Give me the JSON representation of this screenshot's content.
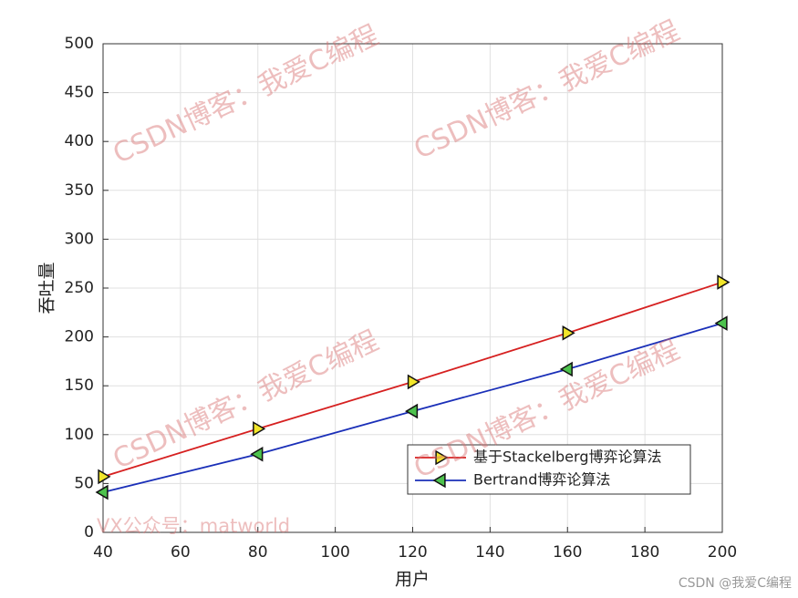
{
  "chart_data": {
    "type": "line",
    "xlabel": "用户",
    "ylabel": "吞吐量",
    "x": [
      40,
      80,
      120,
      160,
      200
    ],
    "series": [
      {
        "name": "基于Stackelberg博弈论算法",
        "color": "#d62020",
        "marker": "triangle-right",
        "marker_color": "#f2e62a",
        "values": [
          57,
          106,
          154,
          204,
          256
        ]
      },
      {
        "name": "Bertrand博弈论算法",
        "color": "#1a2fb8",
        "marker": "triangle-left",
        "marker_color": "#4dc24d",
        "values": [
          41,
          80,
          124,
          167,
          214
        ]
      }
    ],
    "xlim": [
      40,
      200
    ],
    "xticks": [
      40,
      60,
      80,
      100,
      120,
      140,
      160,
      180,
      200
    ],
    "ylim": [
      0,
      500
    ],
    "yticks": [
      0,
      50,
      100,
      150,
      200,
      250,
      300,
      350,
      400,
      450,
      500
    ],
    "grid": true,
    "legend": "lower-right"
  },
  "watermarks": [
    "CSDN博客：我爱C编程",
    "CSDN博客：我爱C编程",
    "CSDN博客：我爱C编程",
    "CSDN博客：我爱C编程",
    "VX公众号：matworld",
    "CSDN @我爱C编程"
  ]
}
